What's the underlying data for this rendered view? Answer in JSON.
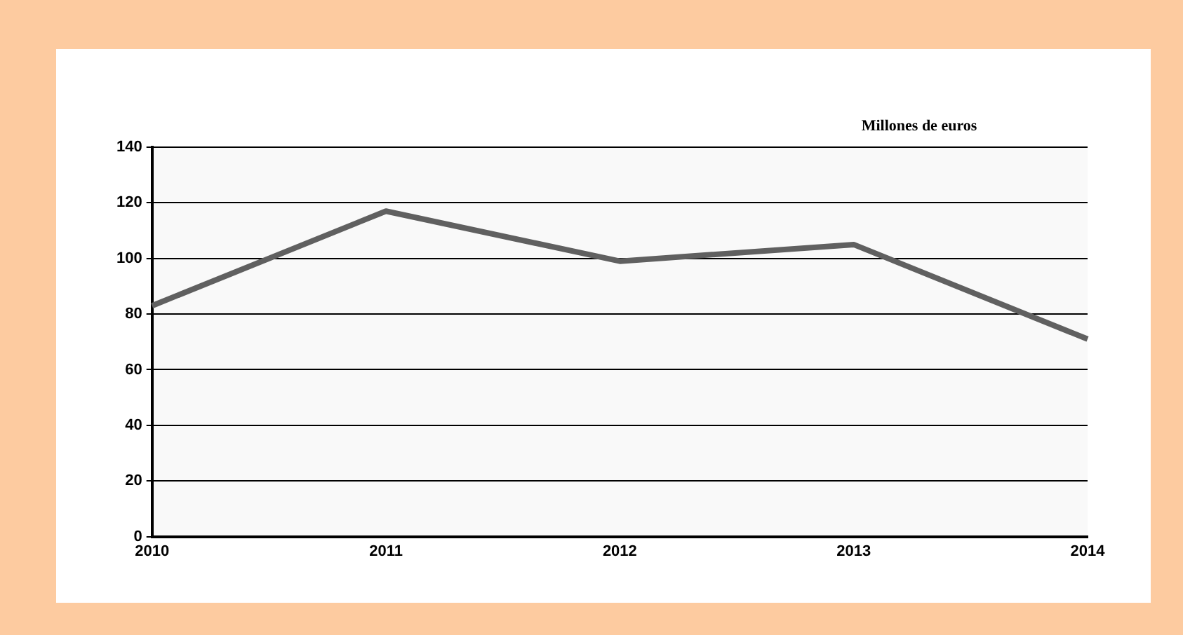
{
  "chart_data": {
    "type": "line",
    "ylabel": "Millones de euros",
    "categories": [
      "2010",
      "2011",
      "2012",
      "2013",
      "2014"
    ],
    "series": [
      {
        "color": "#606060",
        "values": [
          83,
          117,
          99,
          105,
          71
        ]
      }
    ],
    "ylim": [
      0,
      140
    ],
    "yticks": [
      0,
      20,
      40,
      60,
      80,
      100,
      120,
      140
    ],
    "grid": "y",
    "legend": false,
    "marker": "none",
    "line_style": "solid"
  }
}
